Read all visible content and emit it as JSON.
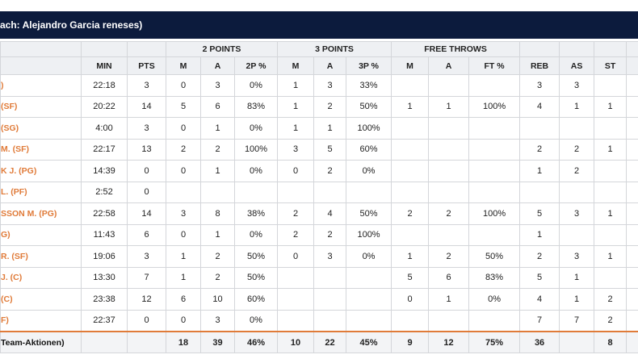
{
  "header": {
    "title": "ach: Alejandro Garcia reneses)"
  },
  "table": {
    "groups": [
      {
        "label": "2 POINTS",
        "span": 3
      },
      {
        "label": "3 POINTS",
        "span": 3
      },
      {
        "label": "FREE THROWS",
        "span": 3
      }
    ],
    "columns": [
      "MIN",
      "PTS",
      "M",
      "A",
      "2P %",
      "M",
      "A",
      "3P %",
      "M",
      "A",
      "FT %",
      "REB",
      "AS",
      "ST"
    ],
    "rows": [
      {
        "name": ")",
        "cells": [
          "22:18",
          "3",
          "0",
          "3",
          "0%",
          "1",
          "3",
          "33%",
          null,
          null,
          null,
          "3",
          "3",
          null
        ]
      },
      {
        "name": "(SF)",
        "cells": [
          "20:22",
          "14",
          "5",
          "6",
          "83%",
          "1",
          "2",
          "50%",
          "1",
          "1",
          "100%",
          "4",
          "1",
          "1"
        ]
      },
      {
        "name": "(SG)",
        "cells": [
          "4:00",
          "3",
          "0",
          "1",
          "0%",
          "1",
          "1",
          "100%",
          null,
          null,
          null,
          null,
          null,
          null
        ]
      },
      {
        "name": "M. (SF)",
        "cells": [
          "22:17",
          "13",
          "2",
          "2",
          "100%",
          "3",
          "5",
          "60%",
          null,
          null,
          null,
          "2",
          "2",
          "1"
        ]
      },
      {
        "name": "K J. (PG)",
        "cells": [
          "14:39",
          "0",
          "0",
          "1",
          "0%",
          "0",
          "2",
          "0%",
          null,
          null,
          null,
          "1",
          "2",
          null
        ]
      },
      {
        "name": "L. (PF)",
        "cells": [
          "2:52",
          "0",
          null,
          null,
          null,
          null,
          null,
          null,
          null,
          null,
          null,
          null,
          null,
          null
        ]
      },
      {
        "name": "SSON M. (PG)",
        "cells": [
          "22:58",
          "14",
          "3",
          "8",
          "38%",
          "2",
          "4",
          "50%",
          "2",
          "2",
          "100%",
          "5",
          "3",
          "1"
        ]
      },
      {
        "name": "G)",
        "cells": [
          "11:43",
          "6",
          "0",
          "1",
          "0%",
          "2",
          "2",
          "100%",
          null,
          null,
          null,
          "1",
          null,
          null
        ]
      },
      {
        "name": "R. (SF)",
        "cells": [
          "19:06",
          "3",
          "1",
          "2",
          "50%",
          "0",
          "3",
          "0%",
          "1",
          "2",
          "50%",
          "2",
          "3",
          "1"
        ]
      },
      {
        "name": "J. (C)",
        "cells": [
          "13:30",
          "7",
          "1",
          "2",
          "50%",
          null,
          null,
          null,
          "5",
          "6",
          "83%",
          "5",
          "1",
          null
        ]
      },
      {
        "name": "(C)",
        "cells": [
          "23:38",
          "12",
          "6",
          "10",
          "60%",
          null,
          null,
          null,
          "0",
          "1",
          "0%",
          "4",
          "1",
          "2"
        ]
      },
      {
        "name": "F)",
        "cells": [
          "22:37",
          "0",
          "0",
          "3",
          "0%",
          null,
          null,
          null,
          null,
          null,
          null,
          "7",
          "7",
          "2"
        ]
      }
    ],
    "total": {
      "name": "Team-Aktionen)",
      "cells": [
        null,
        null,
        "18",
        "39",
        "46%",
        "10",
        "22",
        "45%",
        "9",
        "12",
        "75%",
        "36",
        null,
        "8"
      ]
    }
  }
}
